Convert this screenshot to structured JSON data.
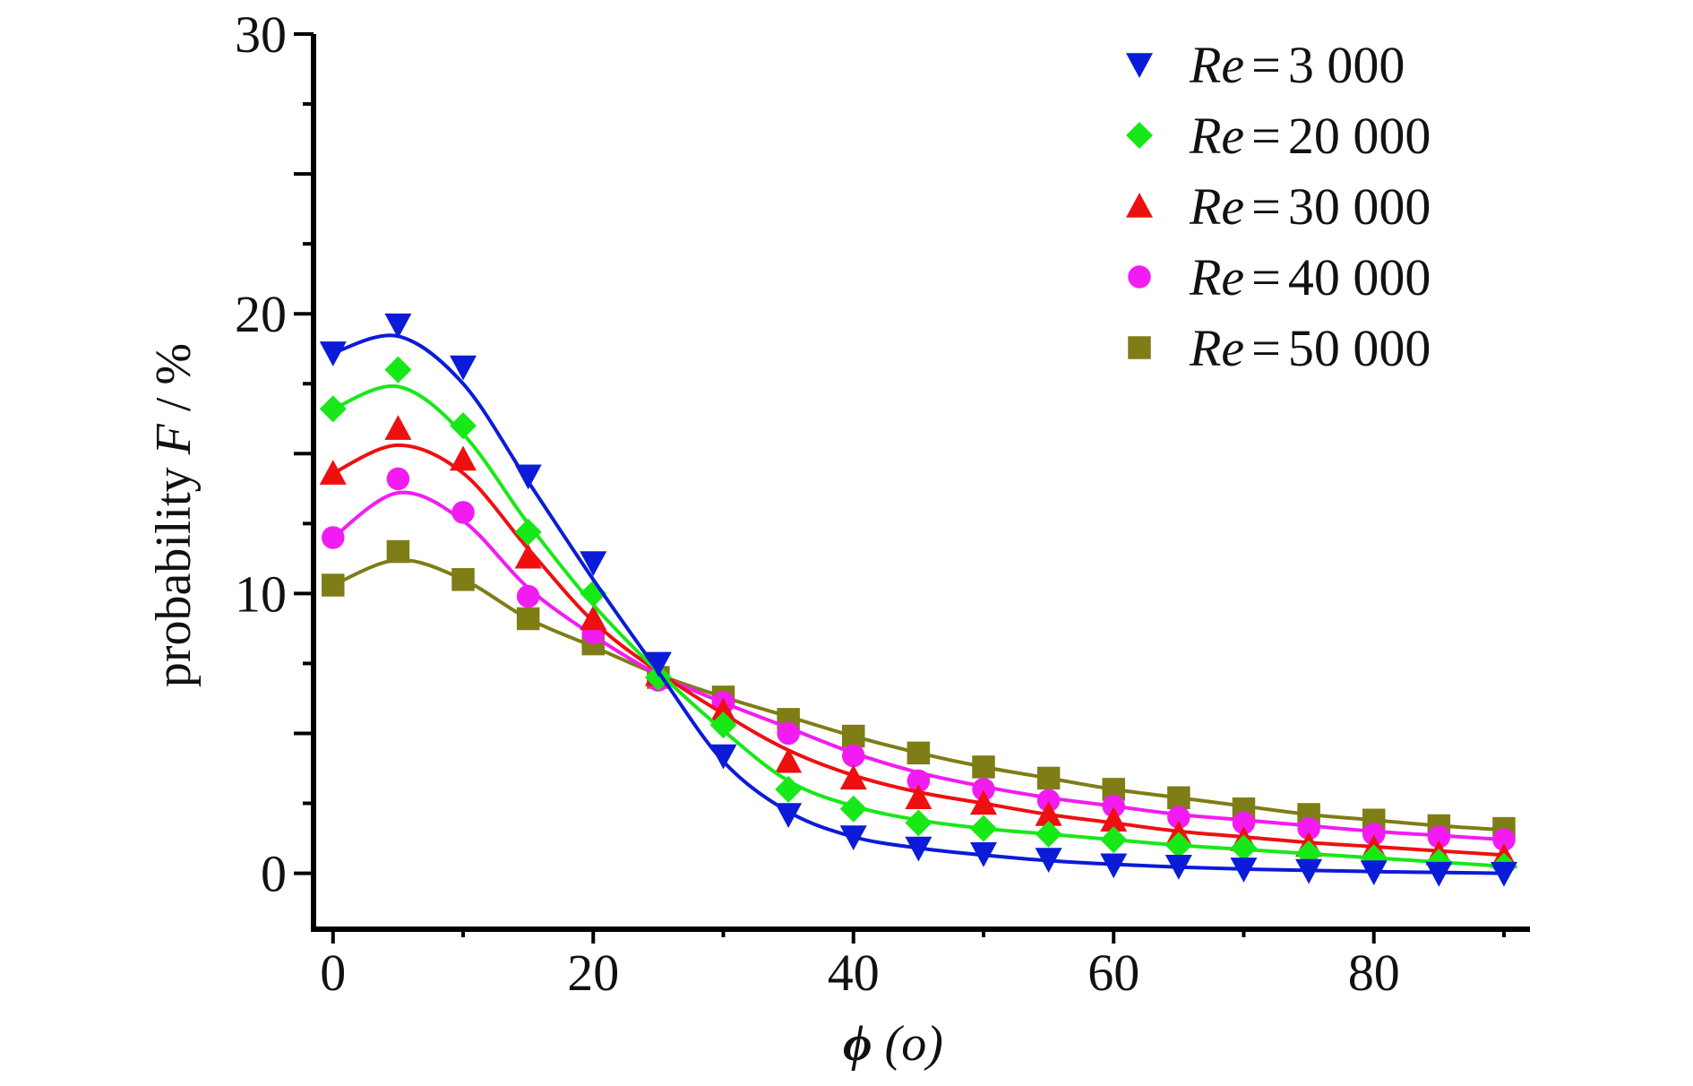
{
  "chart_data": {
    "type": "scatter",
    "title": "",
    "xlabel": {
      "symbol": "ϕ",
      "unit": "(o)"
    },
    "ylabel": {
      "prefix": "probability",
      "var": "F",
      "suffix": "/ %"
    },
    "xlim": [
      -1.5,
      92
    ],
    "ylim": [
      -2,
      30
    ],
    "xticks": [
      0,
      20,
      40,
      60,
      80
    ],
    "xtick_labels": [
      "0",
      "20",
      "40",
      "60",
      "80"
    ],
    "yticks": [
      0,
      10,
      20,
      30
    ],
    "ytick_labels": [
      "0",
      "10",
      "20",
      "30"
    ],
    "legend_position": "top-right",
    "x": [
      0,
      5,
      10,
      15,
      20,
      25,
      30,
      35,
      40,
      45,
      50,
      55,
      60,
      65,
      70,
      75,
      80,
      85,
      90
    ],
    "series": [
      {
        "name": "Re = 3 000",
        "label_var": "Re",
        "label_eq": "=",
        "label_value": "3 000",
        "marker": "triangle-down",
        "color": "#0b1bd8",
        "values": [
          18.6,
          19.6,
          18.1,
          14.2,
          11.1,
          7.5,
          4.2,
          2.1,
          1.3,
          0.9,
          0.7,
          0.5,
          0.3,
          0.25,
          0.15,
          0.1,
          0.05,
          0.0,
          0.0
        ],
        "curve": [
          18.6,
          19.2,
          17.5,
          14.0,
          10.5,
          7.2,
          4.0,
          2.2,
          1.3,
          0.9,
          0.65,
          0.45,
          0.32,
          0.22,
          0.15,
          0.1,
          0.06,
          0.03,
          0.0
        ]
      },
      {
        "name": "Re = 20 000",
        "label_var": "Re",
        "label_eq": "=",
        "label_value": "20 000",
        "marker": "diamond",
        "color": "#18e818",
        "values": [
          16.6,
          18.0,
          16.0,
          12.2,
          10.0,
          7.0,
          5.3,
          3.0,
          2.3,
          1.8,
          1.6,
          1.4,
          1.2,
          1.0,
          0.9,
          0.7,
          0.55,
          0.4,
          0.25
        ],
        "curve": [
          16.6,
          17.4,
          15.7,
          12.5,
          9.6,
          7.2,
          5.1,
          3.3,
          2.4,
          1.9,
          1.6,
          1.4,
          1.2,
          1.0,
          0.85,
          0.7,
          0.55,
          0.4,
          0.25
        ]
      },
      {
        "name": "Re = 30 000",
        "label_var": "Re",
        "label_eq": "=",
        "label_value": "30 000",
        "marker": "triangle-up",
        "color": "#ee1010",
        "values": [
          14.3,
          15.9,
          14.8,
          11.3,
          9.1,
          7.1,
          5.8,
          4.0,
          3.4,
          2.7,
          2.5,
          2.1,
          1.9,
          1.4,
          1.2,
          1.0,
          0.9,
          0.7,
          0.6
        ],
        "curve": [
          14.3,
          15.3,
          14.3,
          11.6,
          9.0,
          7.2,
          5.7,
          4.4,
          3.5,
          2.9,
          2.5,
          2.1,
          1.8,
          1.5,
          1.3,
          1.1,
          0.95,
          0.8,
          0.65
        ]
      },
      {
        "name": "Re = 40 000",
        "label_var": "Re",
        "label_eq": "=",
        "label_value": "40 000",
        "marker": "circle",
        "color": "#f21cf2",
        "values": [
          12.0,
          14.1,
          12.9,
          9.9,
          8.6,
          6.9,
          6.1,
          5.0,
          4.2,
          3.3,
          3.0,
          2.6,
          2.4,
          2.0,
          1.8,
          1.6,
          1.4,
          1.3,
          1.2
        ],
        "curve": [
          12.0,
          13.6,
          12.6,
          10.2,
          8.5,
          7.1,
          6.1,
          5.2,
          4.3,
          3.6,
          3.1,
          2.7,
          2.4,
          2.1,
          1.9,
          1.7,
          1.5,
          1.35,
          1.2
        ]
      },
      {
        "name": "Re = 50 000",
        "label_var": "Re",
        "label_eq": "=",
        "label_value": "50 000",
        "marker": "square",
        "color": "#7e7d16",
        "values": [
          10.3,
          11.5,
          10.5,
          9.1,
          8.2,
          7.0,
          6.3,
          5.5,
          4.9,
          4.3,
          3.8,
          3.4,
          3.0,
          2.7,
          2.3,
          2.1,
          1.9,
          1.7,
          1.6
        ],
        "curve": [
          10.3,
          11.2,
          10.5,
          9.1,
          8.1,
          7.1,
          6.3,
          5.6,
          4.9,
          4.3,
          3.8,
          3.4,
          3.0,
          2.7,
          2.4,
          2.1,
          1.9,
          1.7,
          1.55
        ]
      }
    ]
  }
}
